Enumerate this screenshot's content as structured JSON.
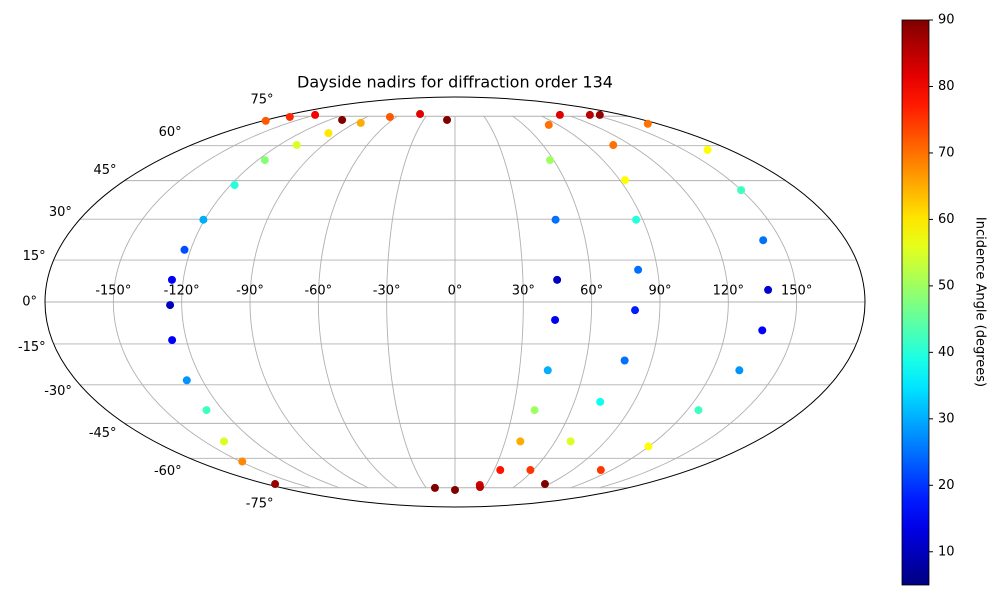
{
  "chart_data": {
    "type": "scatter",
    "projection": "mollweide",
    "title": "Dayside nadirs for diffraction order 134",
    "colorbar_label": "Incidence Angle (degrees)",
    "colormap": "jet",
    "grid": true,
    "xlim": [
      -180,
      180
    ],
    "ylim": [
      -90,
      90
    ],
    "xticks": [
      {
        "value": -150,
        "label": "-150°"
      },
      {
        "value": -120,
        "label": "-120°"
      },
      {
        "value": -90,
        "label": "-90°"
      },
      {
        "value": -60,
        "label": "-60°"
      },
      {
        "value": -30,
        "label": "-30°"
      },
      {
        "value": 0,
        "label": "0°"
      },
      {
        "value": 30,
        "label": "30°"
      },
      {
        "value": 60,
        "label": "60°"
      },
      {
        "value": 90,
        "label": "90°"
      },
      {
        "value": 120,
        "label": "120°"
      },
      {
        "value": 150,
        "label": "150°"
      }
    ],
    "yticks": [
      {
        "value": -75,
        "label": "-75°"
      },
      {
        "value": -60,
        "label": "-60°"
      },
      {
        "value": -45,
        "label": "-45°"
      },
      {
        "value": -30,
        "label": "-30°"
      },
      {
        "value": -15,
        "label": "-15°"
      },
      {
        "value": 0,
        "label": "0°"
      },
      {
        "value": 15,
        "label": "15°"
      },
      {
        "value": 30,
        "label": "30°"
      },
      {
        "value": 45,
        "label": "45°"
      },
      {
        "value": 60,
        "label": "60°"
      },
      {
        "value": 75,
        "label": "75°"
      }
    ],
    "clim": [
      5,
      90
    ],
    "cticks": [
      10,
      20,
      30,
      40,
      50,
      60,
      70,
      80,
      90
    ],
    "x": [
      -7.6,
      -38.4,
      -66.4,
      -85.1,
      -98.0,
      -108.0,
      -115.7,
      -117.8,
      -120.6,
      -122.8,
      -125.0,
      -125.1,
      -126.4,
      -127.4,
      -128.4,
      -138.3,
      -148.7,
      -171.8,
      -177.5,
      -168.5,
      -150.3,
      -107.8,
      0,
      24.1,
      34.7,
      39.1,
      41.1,
      43.2,
      44.1,
      45.1,
      48.2,
      57.8,
      81.7,
      112.7,
      155.6,
      144.9,
      108.0,
      92.8,
      86.8,
      81.4,
      79.1,
      77.7,
      73.0,
      69.2,
      57.8,
      25.5,
      -20.9,
      171.2,
      165.4,
      149.9,
      141.9,
      137.7,
      136.2,
      132.4,
      125.8,
      119.7,
      111.8,
      85.9
    ],
    "y": [
      72.9,
      76.3,
      74.6,
      71.3,
      66.0,
      60.3,
      53.6,
      43.2,
      29.8,
      18.7,
      7.9,
      -1.1,
      -13.6,
      -28.3,
      -39.7,
      -52.5,
      -61.5,
      -72.9,
      72.4,
      74.6,
      75.8,
      72.9,
      -76.3,
      -73.4,
      -65.6,
      -52.5,
      -39.7,
      -24.6,
      -6.4,
      7.9,
      29.8,
      53.6,
      70.2,
      75.8,
      75.8,
      75.8,
      60.3,
      45.2,
      29.8,
      11.5,
      -2.9,
      -21.0,
      -36.5,
      -52.5,
      -65.6,
      -74.6,
      -75.1,
      70.8,
      58.1,
      41.2,
      22.2,
      4.3,
      -10.1,
      -24.6,
      -39.7,
      -54.7,
      -65.6,
      -72.9
    ],
    "values": [
      90,
      82,
      72,
      65,
      60,
      55,
      48,
      40,
      30,
      22,
      15,
      10,
      15,
      28,
      42,
      55,
      68,
      88,
      72,
      76,
      80,
      90,
      90,
      82,
      78,
      65,
      50,
      30,
      15,
      10,
      25,
      50,
      70,
      82,
      88,
      85,
      70,
      58,
      40,
      25,
      18,
      25,
      38,
      55,
      75,
      85,
      90,
      70,
      58,
      42,
      25,
      12,
      15,
      28,
      42,
      58,
      75,
      90
    ]
  }
}
